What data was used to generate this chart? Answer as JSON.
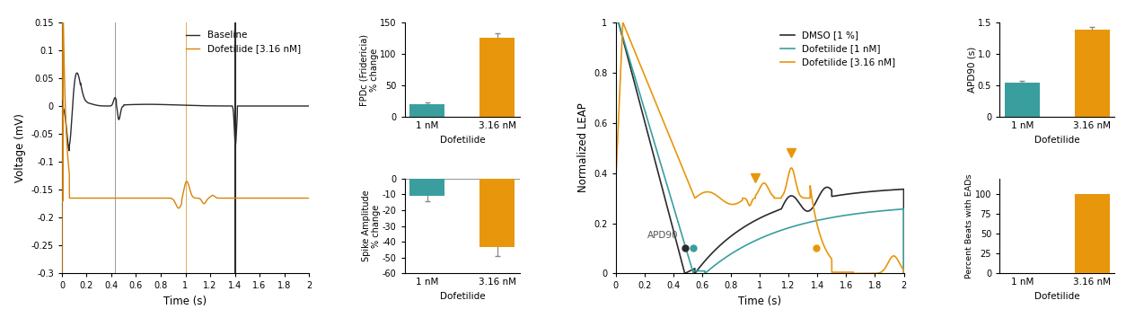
{
  "panel1": {
    "xlabel": "Time (s)",
    "ylabel": "Voltage (mV)",
    "xlim": [
      -0.02,
      2.0
    ],
    "ylim": [
      -0.3,
      0.15
    ],
    "xticks": [
      0,
      0.2,
      0.4,
      0.6,
      0.8,
      1.0,
      1.2,
      1.4,
      1.6,
      1.8,
      2.0
    ],
    "yticks": [
      -0.3,
      -0.25,
      -0.2,
      -0.15,
      -0.1,
      -0.05,
      0,
      0.05,
      0.1,
      0.15
    ],
    "legend": [
      "Baseline",
      "Dofetilide [3.16 nM]"
    ],
    "colors": [
      "#2b2b2b",
      "#d4840a"
    ],
    "vline_black_x": 1.4,
    "vline_orange_x0": 0.0,
    "vline_gray_x": 0.43,
    "vline_orange_thin_x": 1.0
  },
  "panel2_top": {
    "xlabel": "Dofetilide",
    "ylabel": "FPDc (Fridericia)\n% change",
    "categories": [
      "1 nM",
      "3.16 nM"
    ],
    "values": [
      20,
      125
    ],
    "errors": [
      3,
      7
    ],
    "colors": [
      "#3a9e9e",
      "#e8960c"
    ],
    "ylim": [
      0,
      150
    ],
    "yticks": [
      0,
      50,
      100,
      150
    ]
  },
  "panel2_bot": {
    "xlabel": "Dofetilide",
    "ylabel": "Spike Amplitude\n% change",
    "categories": [
      "1 nM",
      "3.16 nM"
    ],
    "values": [
      -11,
      -43
    ],
    "errors": [
      3,
      6
    ],
    "colors": [
      "#3a9e9e",
      "#e8960c"
    ],
    "ylim": [
      -60,
      0
    ],
    "yticks": [
      0,
      -10,
      -20,
      -30,
      -40,
      -50,
      -60
    ]
  },
  "panel3": {
    "xlabel": "Time (s)",
    "ylabel": "Normalized LEAP",
    "xlim": [
      0,
      2
    ],
    "ylim": [
      0,
      1.0
    ],
    "legend": [
      "DMSO [1 %]",
      "Dofetilide [1 nM]",
      "Dofetilide [3.16 nM]"
    ],
    "colors": [
      "#2b2b2b",
      "#3a9e9e",
      "#e8960c"
    ],
    "apd90_label": "APD90",
    "apd90_black_x": 0.48,
    "apd90_black_y": 0.1,
    "apd90_teal_x": 0.54,
    "apd90_teal_y": 0.1,
    "apd90_orange_x": 1.39,
    "apd90_orange_y": 0.1,
    "triangle1_x": 0.97,
    "triangle1_y": 0.38,
    "triangle2_x": 1.22,
    "triangle2_y": 0.48
  },
  "panel4_top": {
    "xlabel": "Dofetilide",
    "ylabel": "APD90 (s)",
    "categories": [
      "1 nM",
      "3.16 nM"
    ],
    "values": [
      0.54,
      1.39
    ],
    "errors": [
      0.03,
      0.03
    ],
    "colors": [
      "#3a9e9e",
      "#e8960c"
    ],
    "ylim": [
      0,
      1.5
    ],
    "yticks": [
      0,
      0.5,
      1.0,
      1.5
    ]
  },
  "panel4_bot": {
    "xlabel": "Dofetilide",
    "ylabel": "Percent Beats with EADs",
    "categories": [
      "1 nM",
      "3.16 nM"
    ],
    "values": [
      0,
      100
    ],
    "colors": [
      "#3a9e9e",
      "#e8960c"
    ],
    "ylim": [
      0,
      120
    ],
    "yticks": [
      0,
      25,
      50,
      75,
      100
    ]
  }
}
